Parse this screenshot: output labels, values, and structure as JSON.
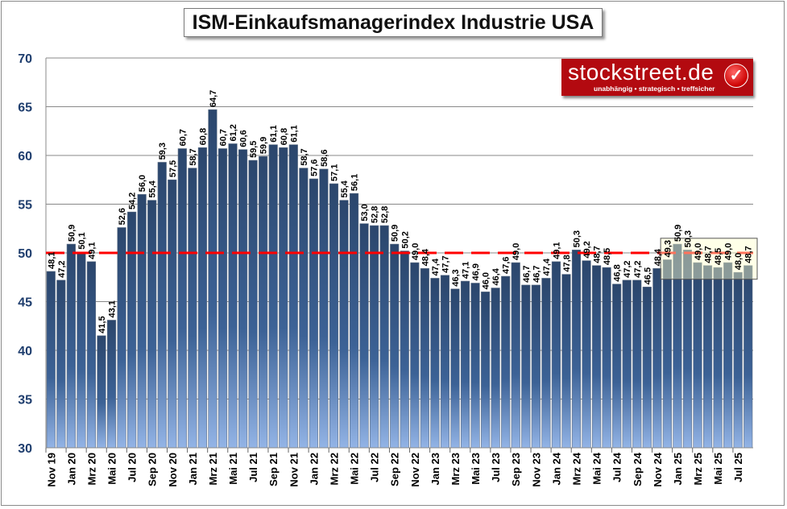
{
  "chart_data": {
    "type": "bar",
    "title": "ISM-Einkaufsmanagerindex Industrie USA",
    "xlabel": "",
    "ylabel": "",
    "ylim": [
      30,
      70
    ],
    "yticks": [
      30,
      35,
      40,
      45,
      50,
      55,
      60,
      65,
      70
    ],
    "grid": true,
    "reference_line": {
      "value": 50,
      "style": "dashed",
      "color": "#ff0000"
    },
    "highlight_range": {
      "from": "Dez 24",
      "to": "Aug 25",
      "color": "#ffffcc"
    },
    "bar_color_top": "#2b466c",
    "bar_color_bottom": "#93b4e6",
    "categories": [
      "Nov 19",
      "Dez 19",
      "Jan 20",
      "Feb 20",
      "Mrz 20",
      "Apr 20",
      "Mai 20",
      "Jun 20",
      "Jul 20",
      "Aug 20",
      "Sep 20",
      "Okt 20",
      "Nov 20",
      "Dez 20",
      "Jan 21",
      "Feb 21",
      "Mrz 21",
      "Apr 21",
      "Mai 21",
      "Jun 21",
      "Jul 21",
      "Aug 21",
      "Sep 21",
      "Okt 21",
      "Nov 21",
      "Dez 21",
      "Jan 22",
      "Feb 22",
      "Mrz 22",
      "Apr 22",
      "Mai 22",
      "Jun 22",
      "Jul 22",
      "Aug 22",
      "Sep 22",
      "Okt 22",
      "Nov 22",
      "Dez 22",
      "Jan 23",
      "Feb 23",
      "Mrz 23",
      "Apr 23",
      "Mai 23",
      "Jun 23",
      "Jul 23",
      "Aug 23",
      "Sep 23",
      "Okt 23",
      "Nov 23",
      "Dez 23",
      "Jan 24",
      "Feb 24",
      "Mrz 24",
      "Apr 24",
      "Mai 24",
      "Jun 24",
      "Jul 24",
      "Aug 24",
      "Sep 24",
      "Okt 24",
      "Nov 24",
      "Dez 24",
      "Jan 25",
      "Feb 25",
      "Mrz 25",
      "Apr 25",
      "Mai 25",
      "Jun 25",
      "Jul 25",
      "Aug 25"
    ],
    "tick_labels": [
      "Nov 19",
      "Jan 20",
      "Mrz 20",
      "Mai 20",
      "Jul 20",
      "Sep 20",
      "Nov 20",
      "Jan 21",
      "Mrz 21",
      "Mai 21",
      "Jul 21",
      "Sep 21",
      "Nov 21",
      "Jan 22",
      "Mrz 22",
      "Mai 22",
      "Jul 22",
      "Sep 22",
      "Nov 22",
      "Jan 23",
      "Mrz 23",
      "Mai 23",
      "Jul 23",
      "Sep 23",
      "Nov 23",
      "Jan 24",
      "Mrz 24",
      "Mai 24",
      "Jul 24",
      "Sep 24",
      "Nov 24",
      "Jan 25",
      "Mrz 25",
      "Mai 25",
      "Jul 25"
    ],
    "values": [
      48.1,
      47.2,
      50.9,
      50.1,
      49.1,
      41.5,
      43.1,
      52.6,
      54.2,
      56.0,
      55.4,
      59.3,
      57.5,
      60.7,
      58.7,
      60.8,
      64.7,
      60.7,
      61.2,
      60.6,
      59.5,
      59.9,
      61.1,
      60.8,
      61.1,
      58.7,
      57.6,
      58.6,
      57.1,
      55.4,
      56.1,
      53.0,
      52.8,
      52.8,
      50.9,
      50.2,
      49.0,
      48.4,
      47.4,
      47.7,
      46.3,
      47.1,
      46.9,
      46.0,
      46.4,
      47.6,
      49.0,
      46.7,
      46.7,
      47.4,
      49.1,
      47.8,
      50.3,
      49.2,
      48.7,
      48.5,
      46.8,
      47.2,
      47.2,
      46.5,
      48.4,
      49.3,
      50.9,
      50.3,
      49.0,
      48.7,
      48.5,
      49.0,
      48.0,
      48.7
    ]
  },
  "logo": {
    "name": "stockstreet.de",
    "tagline": "unabhängig • strategisch • treffsicher"
  }
}
